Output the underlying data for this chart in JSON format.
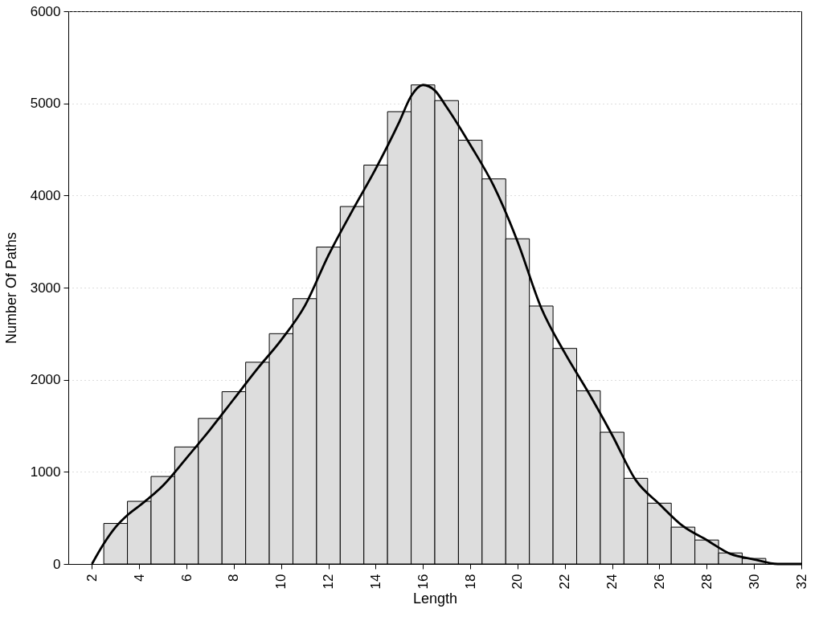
{
  "chart_data": {
    "type": "histogram",
    "xlabel": "Length",
    "ylabel": "Number Of Paths",
    "bins": [
      2.5,
      3.5,
      4.5,
      5.5,
      6.5,
      7.5,
      8.5,
      9.5,
      10.5,
      11.5,
      12.5,
      13.5,
      14.5,
      15.5,
      16.5,
      17.5,
      18.5,
      19.5,
      20.5,
      21.5,
      22.5,
      23.5,
      24.5,
      25.5,
      26.5,
      27.5,
      28.5,
      29.5,
      30.5
    ],
    "series": [
      {
        "color": "#dddddd",
        "values": [
          440,
          680,
          950,
          1270,
          1580,
          1870,
          2190,
          2500,
          2880,
          3440,
          3880,
          4330,
          4910,
          5200,
          5030,
          4600,
          4180,
          3530,
          2800,
          2340,
          1880,
          1430,
          930,
          660,
          400,
          260,
          120,
          60
        ]
      },
      {
        "type": "line",
        "color": "#000000",
        "x": [
          2,
          2.5,
          3,
          3.5,
          4,
          5,
          6,
          7,
          8,
          9,
          10,
          11,
          12,
          13,
          14,
          15,
          15.5,
          16,
          16.5,
          17,
          18,
          19,
          20,
          21,
          22,
          23,
          24,
          25,
          26,
          27,
          28,
          29,
          30,
          31,
          32
        ],
        "values": [
          0,
          220,
          400,
          530,
          630,
          850,
          1150,
          1460,
          1790,
          2120,
          2430,
          2800,
          3350,
          3830,
          4290,
          4800,
          5080,
          5200,
          5140,
          4960,
          4550,
          4100,
          3500,
          2780,
          2290,
          1860,
          1400,
          910,
          650,
          410,
          260,
          110,
          50,
          0,
          0
        ]
      }
    ],
    "xlim": [
      1,
      32
    ],
    "xticks": [
      2,
      4,
      6,
      8,
      10,
      12,
      14,
      16,
      18,
      20,
      22,
      24,
      26,
      28,
      30,
      32
    ],
    "ylim": [
      0,
      6000
    ],
    "yticks": [
      0,
      1000,
      2000,
      3000,
      4000,
      5000,
      6000
    ],
    "grid": "y",
    "line_style": "solid",
    "marker": "none"
  }
}
